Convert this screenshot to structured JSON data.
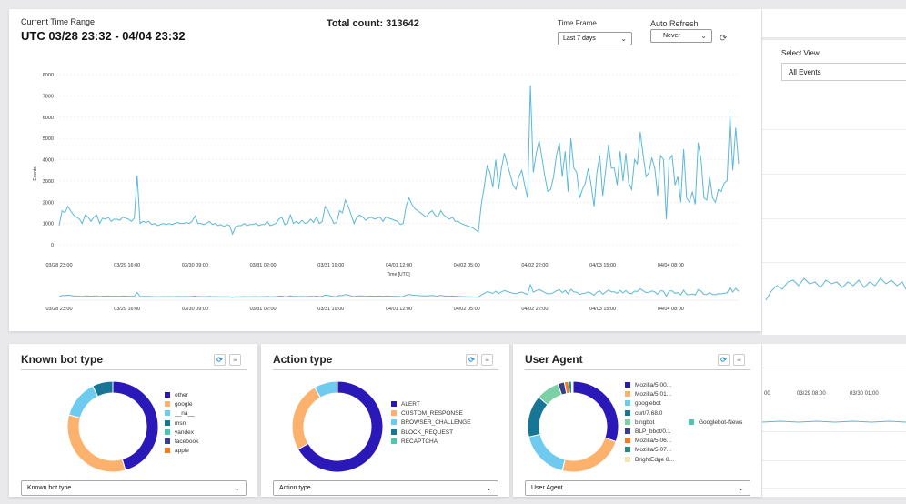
{
  "header": {
    "range_label": "Current Time Range",
    "range_value": "UTC 03/28 23:32 - 04/04 23:32",
    "total": "Total count: 313642",
    "timeframe_label": "Time Frame",
    "timeframe_value": "Last 7 days",
    "autorefresh_label": "Auto Refresh",
    "autorefresh_value": "Never"
  },
  "side": {
    "select_view_label": "Select View",
    "select_view_value": "All Events",
    "ticks": [
      "00",
      "03/29 08:00",
      "03/30 01:00"
    ]
  },
  "colors": {
    "line": "#5bb8d8",
    "other": "#2b18b8",
    "google": "#fcb26d",
    "na": "#6fcaf0",
    "msn": "#177596",
    "yandex": "#4ec7b2",
    "facebook": "#383c91",
    "apple": "#f47c20"
  },
  "chart_data": [
    {
      "type": "line",
      "title": "",
      "ylabel": "Events",
      "xlabel": "Time [UTC]",
      "ylim": [
        0,
        8000
      ],
      "yticks": [
        0,
        1000,
        2000,
        3000,
        4000,
        5000,
        6000,
        7000,
        8000
      ],
      "xticks": [
        "03/28 23:00",
        "03/29 16:00",
        "03/30 09:00",
        "03/31 02:00",
        "03/31 19:00",
        "04/01 12:00",
        "04/02 05:00",
        "04/02 22:00",
        "04/03 15:00",
        "04/04 08:00"
      ],
      "x_first": "03/28 23:00",
      "x_last": "04/04 23:00",
      "series": [
        {
          "values": [
            900,
            1600,
            1500,
            1800,
            1600,
            1400,
            1300,
            1200,
            1000,
            1400,
            1300,
            1100,
            1300,
            1400,
            1000,
            1250,
            1200,
            1300,
            1100,
            1200,
            1200,
            1150,
            1300,
            1250,
            1200,
            1100,
            1250,
            3250,
            1000,
            1100,
            1050,
            1100,
            950,
            1000,
            900,
            950,
            1000,
            950,
            1000,
            950,
            1000,
            1050,
            1000,
            1000,
            1050,
            1000,
            1100,
            1350,
            1000,
            1000,
            950,
            1000,
            1100,
            950,
            1000,
            900,
            950,
            850,
            950,
            900,
            500,
            850,
            900,
            900,
            1000,
            900,
            950,
            950,
            1000,
            900,
            950,
            950,
            1100,
            900,
            950,
            1000,
            1200,
            1300,
            950,
            1000,
            1400,
            1000,
            1100,
            1000,
            1150,
            1000,
            1050,
            1200,
            1050,
            1300,
            1000,
            1100,
            1800,
            1600,
            1300,
            1000,
            1050,
            1600,
            1500,
            2100,
            1800,
            1400,
            1000,
            1300,
            1400,
            1300,
            1150,
            1250,
            1300,
            1200,
            1250,
            1300,
            1100,
            1300,
            1250,
            1200,
            1150,
            1100,
            950,
            1000,
            1800,
            2200,
            1900,
            1700,
            1600,
            1500,
            1400,
            1300,
            1500,
            1600,
            1400,
            1300,
            1600,
            1400,
            1300,
            1200,
            1300,
            1100,
            1100,
            1000,
            950,
            900,
            850,
            800,
            700,
            600,
            1900,
            2700,
            3700,
            3400,
            2700,
            4000,
            2600,
            3600,
            4300,
            3800,
            3300,
            2800,
            2600,
            3200,
            3500,
            2800,
            2200,
            7500,
            3400,
            4300,
            4900,
            4100,
            3200,
            2500,
            2600,
            3200,
            4200,
            4800,
            3200,
            4400,
            2500,
            5000,
            3600,
            3400,
            2200,
            2600,
            2900,
            3600,
            2800,
            1800,
            3400,
            4200,
            2300,
            3500,
            4700,
            3600,
            3600,
            2800,
            4400,
            3000,
            4300,
            2900,
            2600,
            4000,
            3800,
            5300,
            4200,
            3200,
            3400,
            4100,
            3600,
            2300,
            4200,
            4000,
            1200,
            4000,
            4200,
            2800,
            3200,
            2000,
            4500,
            2200,
            2000,
            2500,
            1900,
            4800,
            4000,
            2200,
            2100,
            3200,
            2200,
            2000,
            2600,
            2500,
            2900,
            3000,
            6100,
            3500,
            5500,
            3800
          ]
        }
      ]
    },
    {
      "type": "pie",
      "title": "Known bot type",
      "labels": [
        "other",
        "google",
        "__na__",
        "msn",
        "yandex",
        "facebook",
        "apple"
      ],
      "values": [
        45.5,
        33.7,
        13.5,
        7.3,
        0,
        0,
        0
      ]
    },
    {
      "type": "pie",
      "title": "Action type",
      "labels": [
        "ALERT",
        "CUSTOM_RESPONSE",
        "BROWSER_CHALLENGE",
        "BLOCK_REQUEST",
        "RECAPTCHA"
      ],
      "values": [
        66.7,
        24.9,
        8.4,
        0,
        0
      ]
    },
    {
      "type": "pie",
      "title": "User Agent",
      "labels": [
        "Mozilla/5.00...",
        "Mozilla/5.01...",
        "googlebot",
        "curl/7.68.0",
        "bingbot",
        "BLP_bbot/0.1",
        "Mozilla/5.06...",
        "Mozilla/5.07...",
        "BrightEdge 8...",
        "Googlebot-News"
      ],
      "values": [
        28.4,
        22.0,
        16.4,
        14.0,
        7.7,
        2.2,
        1.4,
        1.0,
        0.5,
        0
      ]
    }
  ],
  "legend_colors": {
    "bot": [
      "#2b18b8",
      "#fcb26d",
      "#6fcaf0",
      "#177596",
      "#4ec7b2",
      "#383c91",
      "#f47c20"
    ],
    "action": [
      "#2b18b8",
      "#fcb26d",
      "#6fcaf0",
      "#177596",
      "#4ec7b2"
    ],
    "agent": [
      "#2b18b8",
      "#fcb26d",
      "#6fcaf0",
      "#177596",
      "#7cd0a5",
      "#383c91",
      "#f47c20",
      "#1f8d7f",
      "#f3e4b3",
      "#4ec7b2"
    ]
  },
  "cards": {
    "bot": {
      "title": "Known bot type",
      "select": "Known bot type"
    },
    "action": {
      "title": "Action type",
      "select": "Action type"
    },
    "agent": {
      "title": "User Agent",
      "select": "User Agent"
    }
  }
}
